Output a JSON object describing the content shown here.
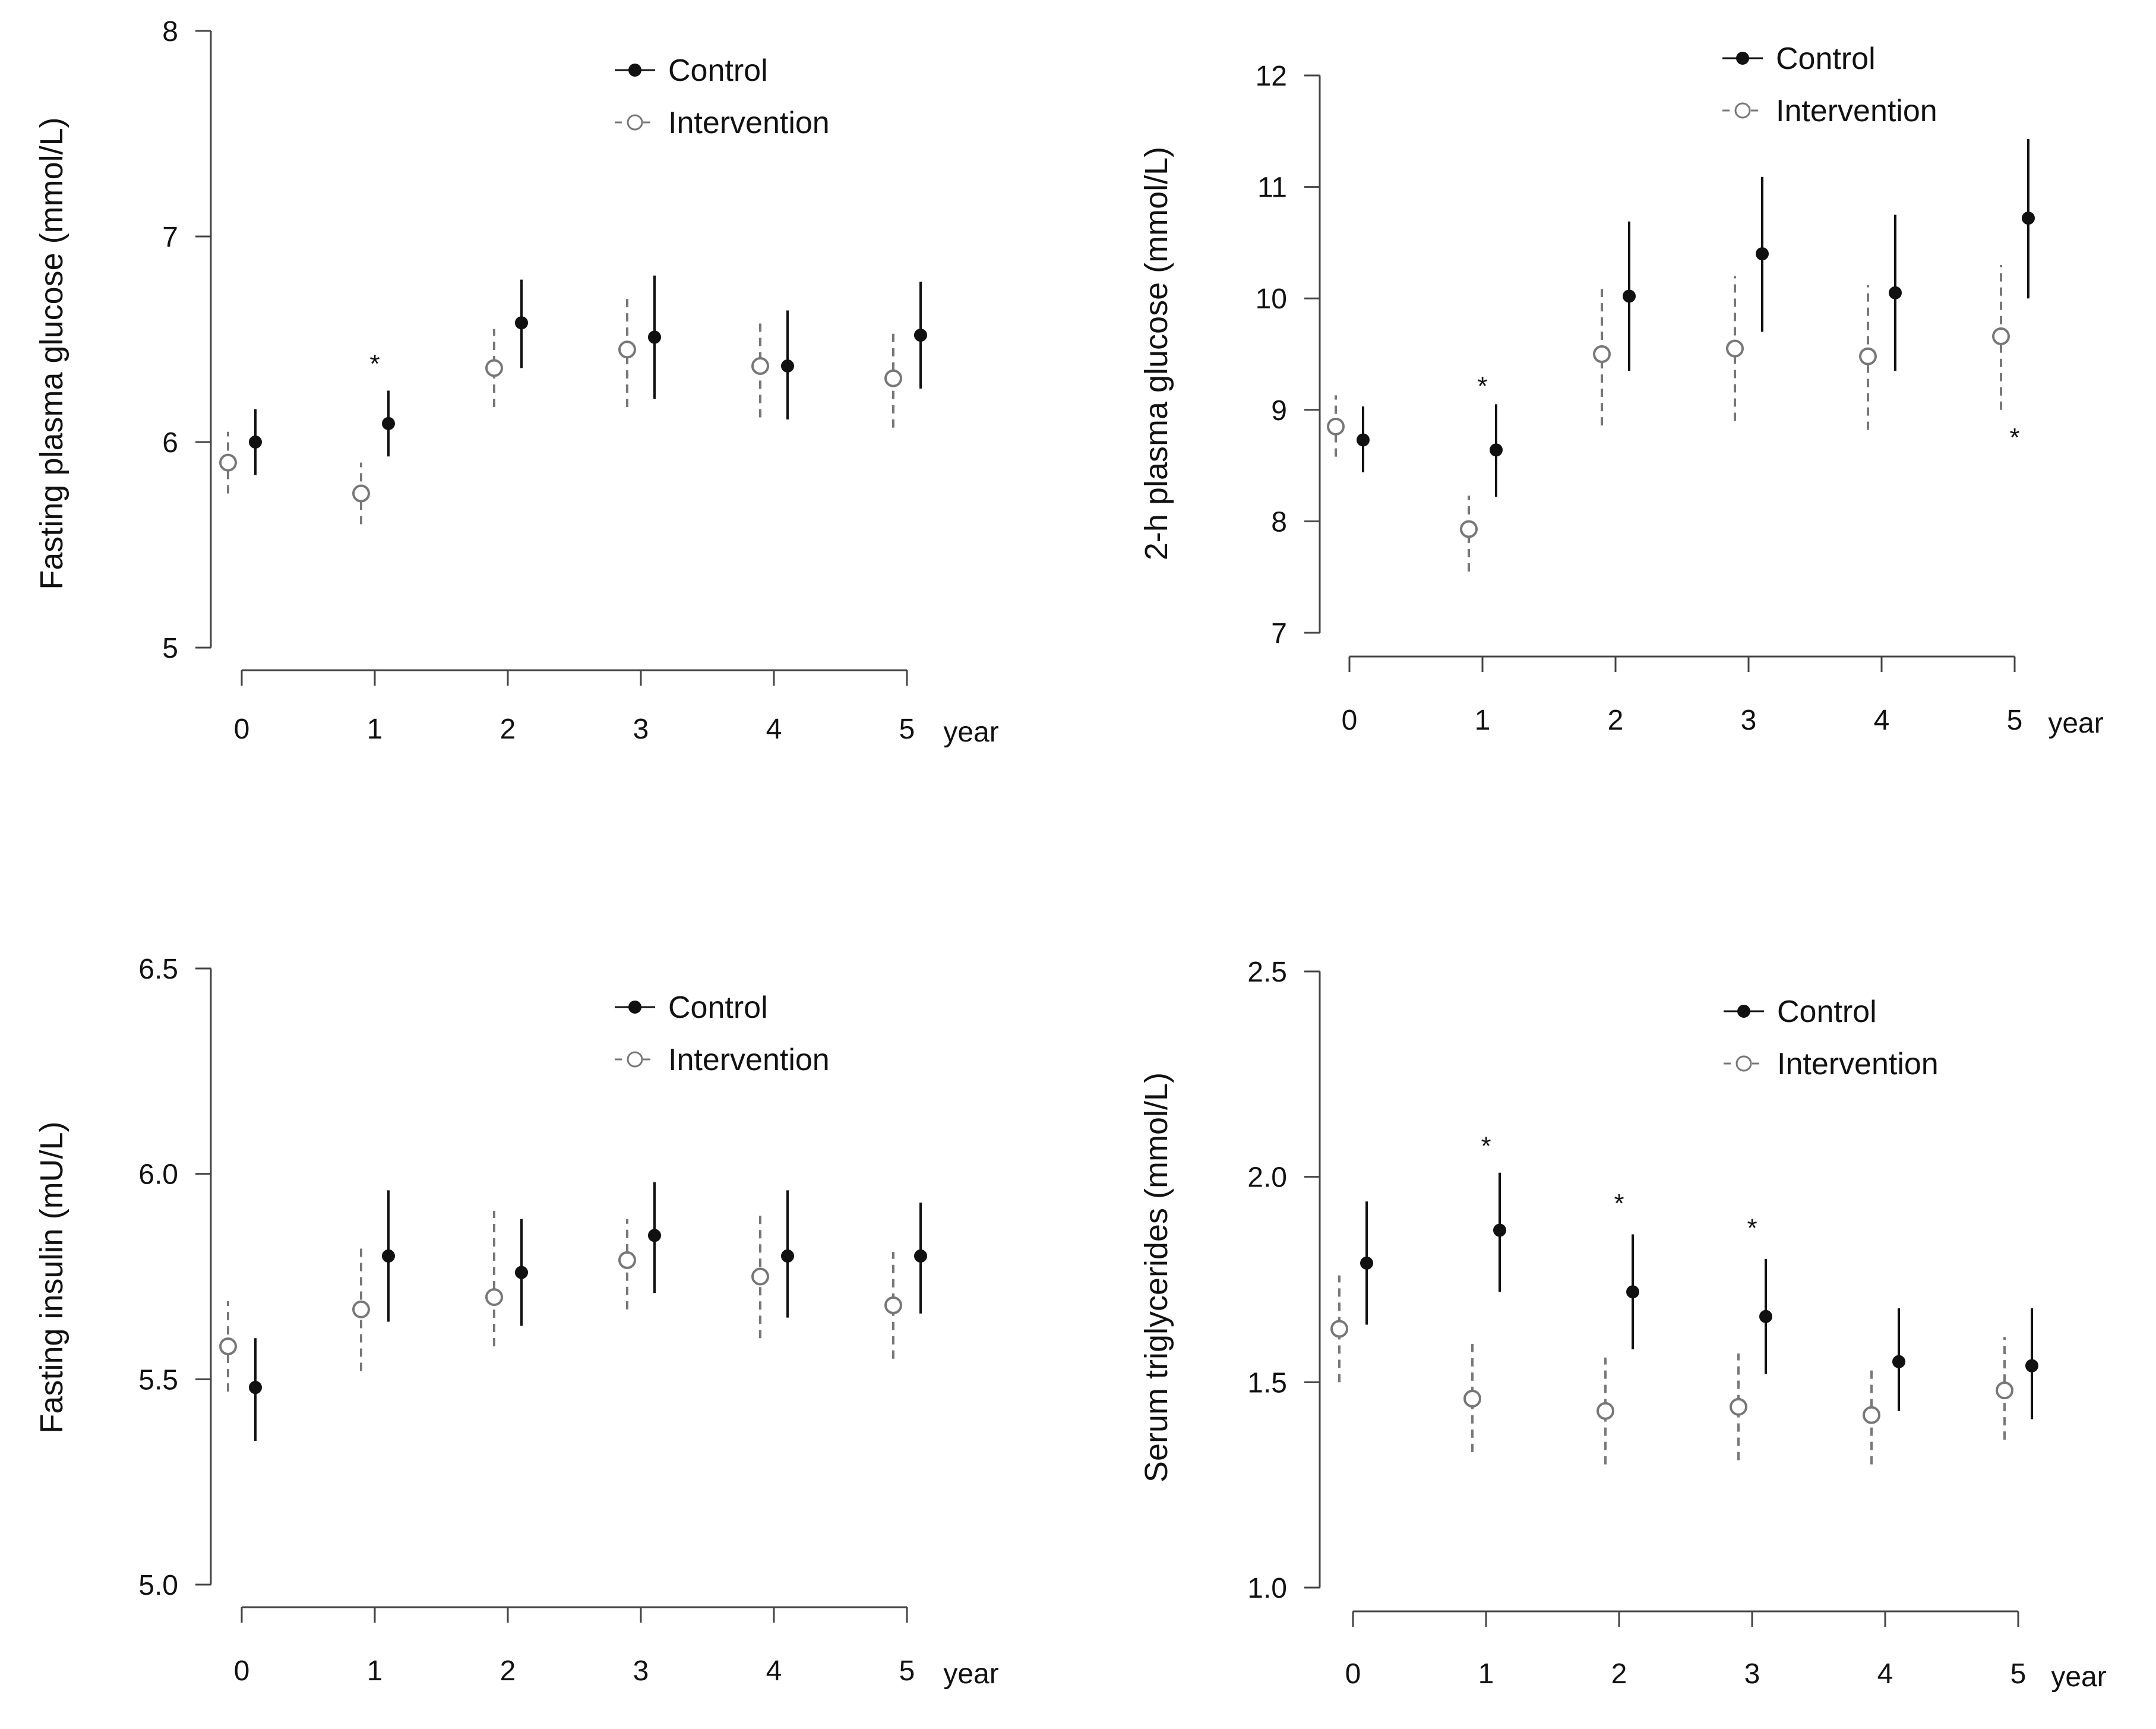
{
  "colors": {
    "control": "#111111",
    "intervention": "#777777",
    "axis": "#444444"
  },
  "chart_data": [
    {
      "type": "scatter",
      "title": "",
      "ylabel": "Fasting plasma glucose (mmol/L)",
      "xlabel": "year",
      "ylim": [
        5,
        8
      ],
      "yticks": [
        5,
        6,
        7,
        8
      ],
      "ytick_labels": [
        "5",
        "6",
        "7",
        "8"
      ],
      "categories": [
        "0",
        "1",
        "2",
        "3",
        "4",
        "5"
      ],
      "legend": {
        "position": "top-right",
        "entries": [
          "Control",
          "Intervention"
        ]
      },
      "series": [
        {
          "name": "Control",
          "values": [
            6.0,
            6.09,
            6.58,
            6.51,
            6.37,
            6.52
          ],
          "lower": [
            5.84,
            5.93,
            6.36,
            6.21,
            6.11,
            6.26
          ],
          "upper": [
            6.16,
            6.25,
            6.79,
            6.81,
            6.64,
            6.78
          ]
        },
        {
          "name": "Intervention",
          "values": [
            5.9,
            5.75,
            6.36,
            6.45,
            6.37,
            6.31
          ],
          "lower": [
            5.75,
            5.6,
            6.17,
            6.17,
            6.12,
            6.07
          ],
          "upper": [
            6.05,
            5.9,
            6.55,
            6.72,
            6.59,
            6.53
          ]
        }
      ],
      "annotations": [
        {
          "text": "*",
          "x": 1,
          "y": 6.39,
          "offset": 0
        }
      ]
    },
    {
      "type": "scatter",
      "title": "",
      "ylabel": "2-h plasma glucose (mmol/L)",
      "xlabel": "year",
      "ylim": [
        7,
        12
      ],
      "yticks": [
        7,
        8,
        9,
        10,
        11,
        12
      ],
      "ytick_labels": [
        "7",
        "8",
        "9",
        "10",
        "11",
        "12"
      ],
      "categories": [
        "0",
        "1",
        "2",
        "3",
        "4",
        "5"
      ],
      "legend": {
        "position": "top-right",
        "entries": [
          "Control",
          "Intervention"
        ]
      },
      "series": [
        {
          "name": "Control",
          "values": [
            8.73,
            8.64,
            10.02,
            10.4,
            10.05,
            10.72
          ],
          "lower": [
            8.44,
            8.22,
            9.35,
            9.7,
            9.35,
            10.0
          ],
          "upper": [
            9.03,
            9.05,
            10.69,
            11.09,
            10.75,
            11.43
          ]
        },
        {
          "name": "Intervention",
          "values": [
            8.85,
            7.93,
            9.5,
            9.55,
            9.48,
            9.66
          ],
          "lower": [
            8.58,
            7.55,
            8.86,
            8.9,
            8.82,
            9.0
          ],
          "upper": [
            9.13,
            8.23,
            10.13,
            10.2,
            10.12,
            10.3
          ]
        }
      ],
      "annotations": [
        {
          "text": "*",
          "x": 1,
          "y": 9.23,
          "offset": 0
        },
        {
          "text": "*",
          "x": 5,
          "y": 8.77,
          "offset": 0
        }
      ]
    },
    {
      "type": "scatter",
      "title": "",
      "ylabel": "Fasting insulin (mU/L)",
      "xlabel": "year",
      "ylim": [
        5.0,
        6.5
      ],
      "yticks": [
        5.0,
        5.5,
        6.0,
        6.5
      ],
      "ytick_labels": [
        "5.0",
        "5.5",
        "6.0",
        "6.5"
      ],
      "categories": [
        "0",
        "1",
        "2",
        "3",
        "4",
        "5"
      ],
      "legend": {
        "position": "top-right",
        "entries": [
          "Control",
          "Intervention"
        ]
      },
      "series": [
        {
          "name": "Control",
          "values": [
            5.48,
            5.8,
            5.76,
            5.85,
            5.8,
            5.8
          ],
          "lower": [
            5.35,
            5.64,
            5.63,
            5.71,
            5.65,
            5.66
          ],
          "upper": [
            5.6,
            5.96,
            5.89,
            5.98,
            5.96,
            5.93
          ]
        },
        {
          "name": "Intervention",
          "values": [
            5.58,
            5.67,
            5.7,
            5.79,
            5.75,
            5.68
          ],
          "lower": [
            5.47,
            5.52,
            5.58,
            5.67,
            5.6,
            5.55
          ],
          "upper": [
            5.69,
            5.82,
            5.91,
            5.89,
            5.9,
            5.81
          ]
        }
      ],
      "annotations": []
    },
    {
      "type": "scatter",
      "title": "",
      "ylabel": "Serum triglycerides (mmol/L)",
      "xlabel": "year",
      "ylim": [
        1.0,
        2.5
      ],
      "yticks": [
        1.0,
        1.5,
        2.0,
        2.5
      ],
      "ytick_labels": [
        "1.0",
        "1.5",
        "2.0",
        "2.5"
      ],
      "categories": [
        "0",
        "1",
        "2",
        "3",
        "4",
        "5"
      ],
      "legend": {
        "position": "top-right",
        "entries": [
          "Control",
          "Intervention"
        ]
      },
      "series": [
        {
          "name": "Control",
          "values": [
            1.79,
            1.87,
            1.72,
            1.66,
            1.55,
            1.54
          ],
          "lower": [
            1.64,
            1.72,
            1.58,
            1.52,
            1.43,
            1.41
          ],
          "upper": [
            1.94,
            2.01,
            1.86,
            1.8,
            1.68,
            1.68
          ]
        },
        {
          "name": "Intervention",
          "values": [
            1.63,
            1.46,
            1.43,
            1.44,
            1.42,
            1.48
          ],
          "lower": [
            1.5,
            1.33,
            1.3,
            1.31,
            1.3,
            1.36
          ],
          "upper": [
            1.76,
            1.6,
            1.56,
            1.57,
            1.53,
            1.61
          ]
        }
      ],
      "annotations": [
        {
          "text": "*",
          "x": 1,
          "y": 2.08,
          "offset": 0
        },
        {
          "text": "*",
          "x": 2,
          "y": 1.94,
          "offset": 0
        },
        {
          "text": "*",
          "x": 3,
          "y": 1.88,
          "offset": 0
        }
      ]
    }
  ]
}
